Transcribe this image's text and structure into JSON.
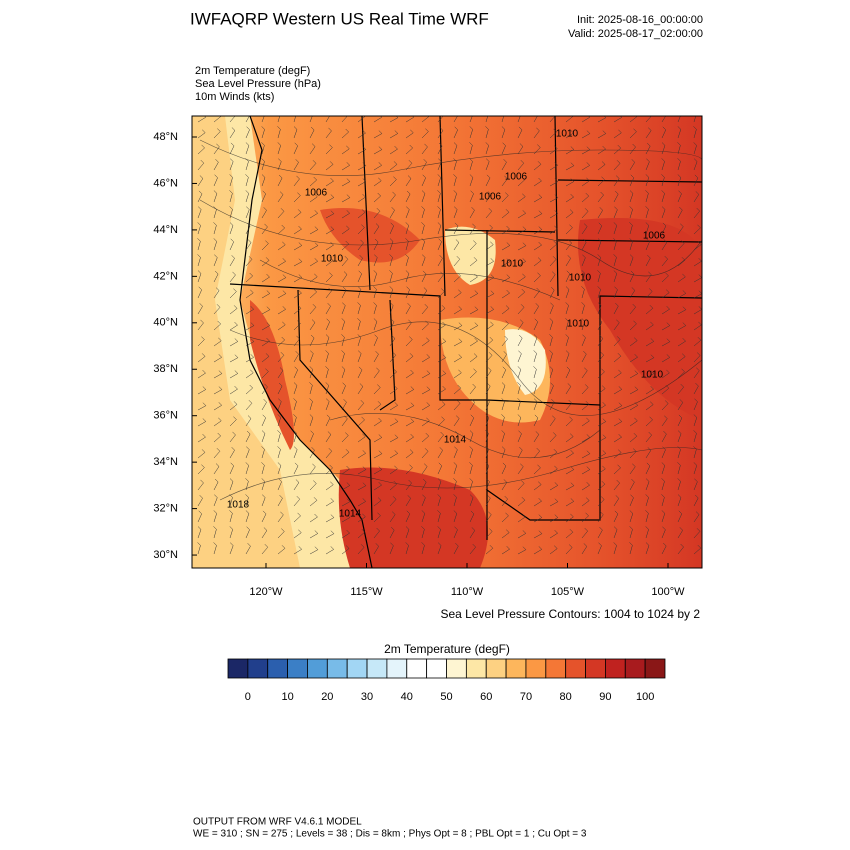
{
  "header": {
    "title": "IWFAQRP Western US Real Time WRF",
    "init": "Init: 2025-08-16_00:00:00",
    "valid": "Valid: 2025-08-17_02:00:00"
  },
  "fields": [
    "2m Temperature   (degF)",
    "Sea Level Pressure   (hPa)",
    "10m Winds   (kts)"
  ],
  "map": {
    "lat_labels": [
      "48°N",
      "46°N",
      "44°N",
      "42°N",
      "40°N",
      "38°N",
      "36°N",
      "34°N",
      "32°N",
      "30°N"
    ],
    "lon_labels": [
      "120°W",
      "115°W",
      "110°W",
      "105°W",
      "100°W"
    ],
    "contour_labels": [
      "1010",
      "1006",
      "1006",
      "1010",
      "1006",
      "1010",
      "1006",
      "1010",
      "1010",
      "1010",
      "1014",
      "1018",
      "1014"
    ]
  },
  "contour_note": "Sea Level Pressure Contours: 1004 to 1024 by 2",
  "colorbar": {
    "title": "2m Temperature  (degF)",
    "colors": [
      "#1b2766",
      "#213f8c",
      "#2b5fae",
      "#3b7fc6",
      "#529dd8",
      "#78bbe8",
      "#a2d6f4",
      "#c6e8f8",
      "#e4f4fb",
      "#ffffff",
      "#ffffff",
      "#fef5d2",
      "#fde7a6",
      "#fdd182",
      "#fdb65c",
      "#fb9844",
      "#f47736",
      "#e5532b",
      "#d43724",
      "#c0221f",
      "#a81b1e",
      "#8a1717"
    ],
    "ticks": [
      0,
      10,
      20,
      30,
      40,
      50,
      60,
      70,
      80,
      90,
      100
    ]
  },
  "footer": {
    "line1": "OUTPUT FROM WRF V4.6.1 MODEL",
    "line2": "WE = 310 ; SN = 275 ; Levels = 38 ; Dis = 8km ; Phys Opt = 8 ; PBL Opt = 1 ; Cu Opt = 3"
  }
}
